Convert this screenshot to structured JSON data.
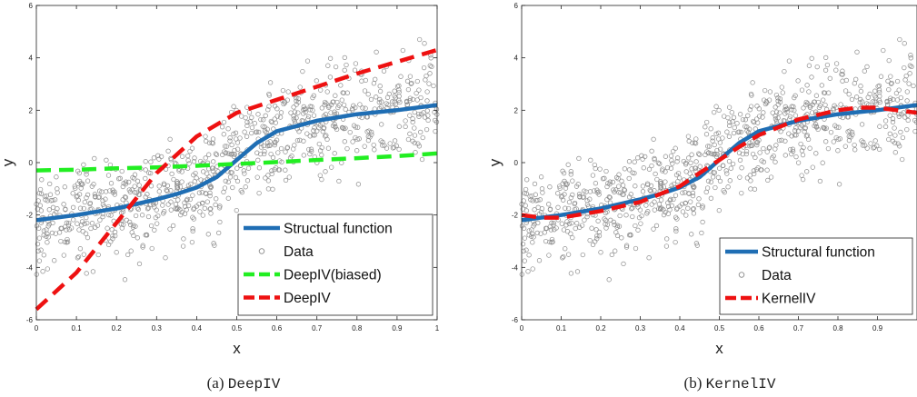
{
  "figure": {
    "captions": [
      {
        "prefix": "(a) ",
        "code": "DeepIV"
      },
      {
        "prefix": "(b) ",
        "code": "KernelIV"
      }
    ]
  },
  "chart_data": [
    {
      "type": "scatter",
      "panel": "a",
      "xlabel": "x",
      "ylabel": "y",
      "xlim": [
        0,
        1
      ],
      "ylim": [
        -6,
        6
      ],
      "x_ticks": [
        0,
        0.1,
        0.2,
        0.3,
        0.4,
        0.5,
        0.6,
        0.7,
        0.8,
        0.9,
        1
      ],
      "x_tick_labels": [
        "0",
        "0.1",
        "0.2",
        "0.3",
        "0.4",
        "0.5",
        "0.6",
        "0.7",
        "0.8",
        "0.9",
        "1"
      ],
      "y_ticks": [
        -6,
        -4,
        -2,
        0,
        2,
        4,
        6
      ],
      "y_tick_labels": [
        "-6",
        "-4",
        "-2",
        "0",
        "2",
        "4",
        "6"
      ],
      "grid": false,
      "legend_position": "bottom-right",
      "series": [
        {
          "name": "Structual function",
          "kind": "line",
          "style": "solid",
          "color": "#1f6eb4",
          "x": [
            0,
            0.1,
            0.2,
            0.3,
            0.35,
            0.4,
            0.45,
            0.5,
            0.55,
            0.6,
            0.7,
            0.8,
            0.9,
            1.0
          ],
          "y": [
            -2.2,
            -2.0,
            -1.75,
            -1.4,
            -1.2,
            -0.95,
            -0.55,
            0.1,
            0.75,
            1.2,
            1.6,
            1.85,
            2.0,
            2.2
          ]
        },
        {
          "name": "Data",
          "kind": "scatter",
          "color": "#8a8a8a"
        },
        {
          "name": "DeepIV(biased)",
          "kind": "line",
          "style": "dashed",
          "color": "#22ee22",
          "x": [
            0,
            0.1,
            0.2,
            0.3,
            0.4,
            0.5,
            0.6,
            0.7,
            0.8,
            0.9,
            1.0
          ],
          "y": [
            -0.3,
            -0.27,
            -0.22,
            -0.18,
            -0.12,
            -0.05,
            0.02,
            0.1,
            0.17,
            0.25,
            0.35
          ]
        },
        {
          "name": "DeepIV",
          "kind": "line",
          "style": "dashed",
          "color": "#ee1111",
          "x": [
            0,
            0.1,
            0.2,
            0.3,
            0.4,
            0.5,
            0.6,
            0.7,
            0.8,
            0.9,
            1.0
          ],
          "y": [
            -5.6,
            -4.2,
            -2.3,
            -0.4,
            1.0,
            1.9,
            2.4,
            2.9,
            3.4,
            3.85,
            4.3
          ]
        }
      ]
    },
    {
      "type": "scatter",
      "panel": "b",
      "xlabel": "x",
      "ylabel": "y",
      "xlim": [
        0,
        1
      ],
      "ylim": [
        -6,
        6
      ],
      "x_ticks": [
        0,
        0.1,
        0.2,
        0.3,
        0.4,
        0.5,
        0.6,
        0.7,
        0.8,
        0.9
      ],
      "x_tick_labels": [
        "0",
        "0.1",
        "0.2",
        "0.3",
        "0.4",
        "0.5",
        "0.6",
        "0.7",
        "0.8",
        "0.9"
      ],
      "y_ticks": [
        -6,
        -4,
        -2,
        0,
        2,
        4,
        6
      ],
      "y_tick_labels": [
        "-6",
        "-4",
        "-2",
        "0",
        "2",
        "4",
        "6"
      ],
      "grid": false,
      "legend_position": "bottom-right",
      "series": [
        {
          "name": "Structural function",
          "kind": "line",
          "style": "solid",
          "color": "#1f6eb4",
          "x": [
            0,
            0.1,
            0.2,
            0.3,
            0.35,
            0.4,
            0.45,
            0.5,
            0.55,
            0.6,
            0.7,
            0.8,
            0.9,
            1.0
          ],
          "y": [
            -2.2,
            -2.0,
            -1.75,
            -1.4,
            -1.2,
            -0.95,
            -0.55,
            0.1,
            0.75,
            1.2,
            1.6,
            1.85,
            2.0,
            2.2
          ]
        },
        {
          "name": "Data",
          "kind": "scatter",
          "color": "#8a8a8a"
        },
        {
          "name": "KernelIV",
          "kind": "line",
          "style": "dashed",
          "color": "#ee1111",
          "x": [
            0,
            0.05,
            0.1,
            0.2,
            0.3,
            0.4,
            0.45,
            0.5,
            0.55,
            0.6,
            0.7,
            0.8,
            0.85,
            0.9,
            1.0
          ],
          "y": [
            -2.0,
            -2.1,
            -2.1,
            -1.85,
            -1.5,
            -0.9,
            -0.4,
            0.1,
            0.6,
            1.05,
            1.65,
            2.0,
            2.1,
            2.1,
            1.9
          ]
        }
      ]
    }
  ]
}
